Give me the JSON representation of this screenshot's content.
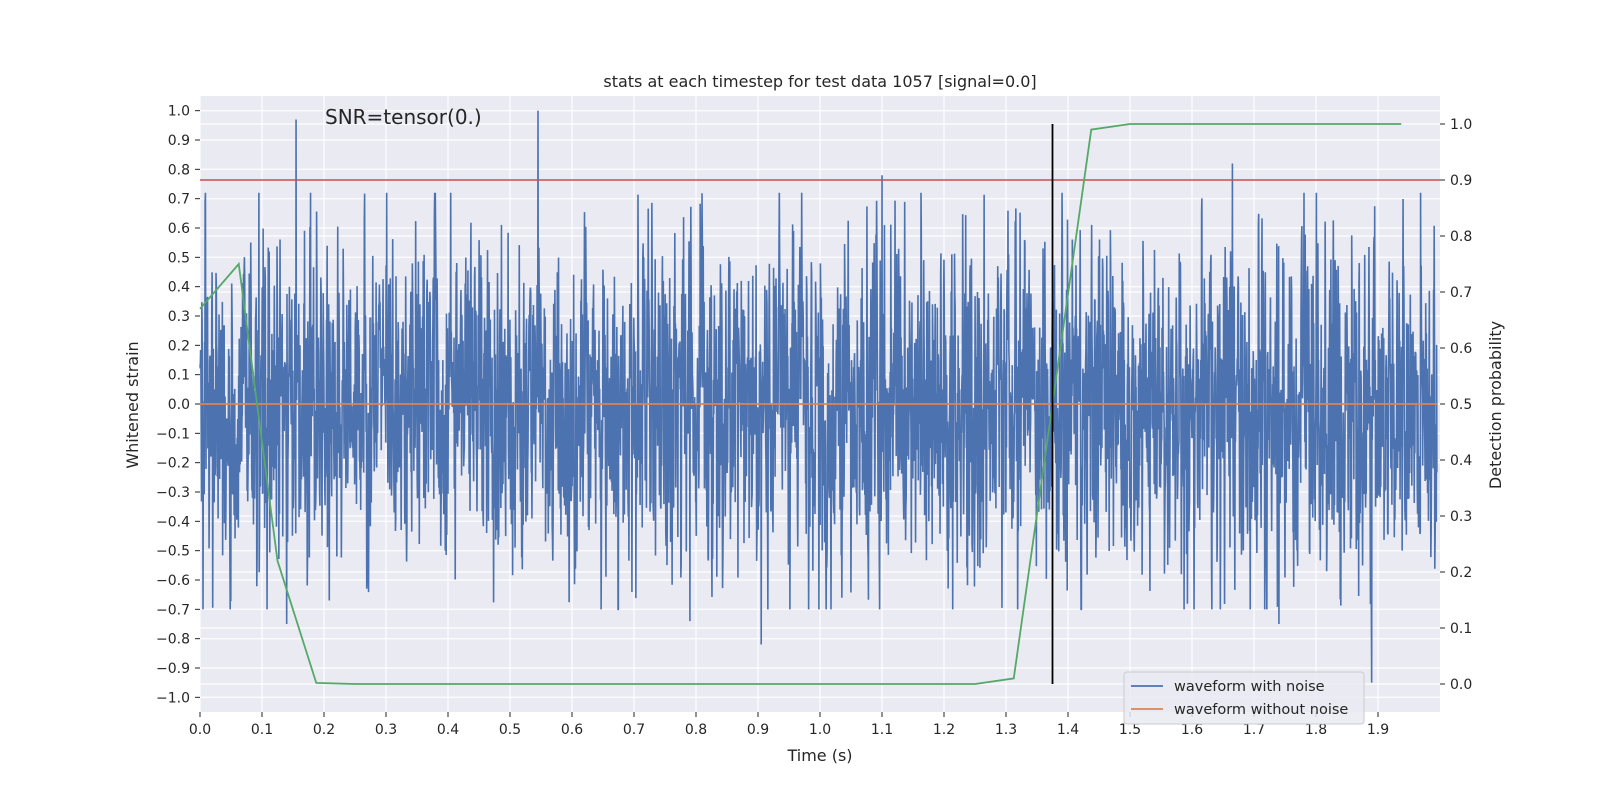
{
  "chart_data": {
    "type": "line",
    "title": "stats at each timestep for test data 1057 [signal=0.0]",
    "xlabel": "Time (s)",
    "ylabel_left": "Whitened strain",
    "ylabel_right": "Detection probability",
    "xlim": [
      0.0,
      2.0
    ],
    "ylim_left": [
      -1.05,
      1.05
    ],
    "ylim_right": [
      -0.05,
      1.05
    ],
    "x_ticks": [
      "0.0",
      "0.1",
      "0.2",
      "0.3",
      "0.4",
      "0.5",
      "0.6",
      "0.7",
      "0.8",
      "0.9",
      "1.0",
      "1.1",
      "1.2",
      "1.3",
      "1.4",
      "1.5",
      "1.6",
      "1.7",
      "1.8",
      "1.9"
    ],
    "y_ticks_left": [
      "1.0",
      "0.9",
      "0.8",
      "0.7",
      "0.6",
      "0.5",
      "0.4",
      "0.3",
      "0.2",
      "0.1",
      "0.0",
      "−0.1",
      "−0.2",
      "−0.3",
      "−0.4",
      "−0.5",
      "−0.6",
      "−0.7",
      "−0.8",
      "−0.9",
      "−1.0"
    ],
    "y_ticks_right": [
      "1.0",
      "0.9",
      "0.8",
      "0.7",
      "0.6",
      "0.5",
      "0.4",
      "0.3",
      "0.2",
      "0.1",
      "0.0"
    ],
    "grid": true,
    "legend_placement": "lower-right",
    "annotation": "SNR=tensor(0.)",
    "threshold_line": {
      "axis": "right",
      "y": 0.9,
      "color": "#c44e52"
    },
    "vertical_marker": {
      "x": 1.375,
      "y_range_right": [
        0.0,
        1.0
      ],
      "color": "#000000"
    },
    "series": [
      {
        "name": "waveform with noise",
        "axis": "left",
        "color": "#4c72b0",
        "kind": "noise",
        "x_range": [
          0.0,
          1.995
        ],
        "n_points": 4096,
        "approx_std": 0.25,
        "min": -0.95,
        "max": 1.0
      },
      {
        "name": "waveform without noise",
        "axis": "left",
        "color": "#dd8452",
        "x": [
          0.0,
          1.995
        ],
        "y": [
          0.0,
          0.0
        ]
      },
      {
        "name": "detection probability",
        "axis": "right",
        "color": "#55a868",
        "x": [
          0.0,
          0.0625,
          0.125,
          0.1875,
          0.25,
          0.3125,
          0.375,
          0.4375,
          0.5,
          0.5625,
          0.625,
          0.6875,
          0.75,
          0.8125,
          0.875,
          0.9375,
          1.0,
          1.0625,
          1.125,
          1.1875,
          1.25,
          1.3125,
          1.375,
          1.4375,
          1.5,
          1.5625,
          1.625,
          1.6875,
          1.75,
          1.8125,
          1.875,
          1.9375
        ],
        "y": [
          0.67,
          0.75,
          0.22,
          0.002,
          0.0,
          0.0,
          0.0,
          0.0,
          0.0,
          0.0,
          0.0,
          0.0,
          0.0,
          0.0,
          0.0,
          0.0,
          0.0,
          0.0,
          0.0,
          0.0,
          0.0,
          0.01,
          0.5,
          0.99,
          1.0,
          1.0,
          1.0,
          1.0,
          1.0,
          1.0,
          1.0,
          1.0
        ]
      }
    ],
    "noise_spikes": [
      {
        "x": 0.155,
        "y": 0.97
      },
      {
        "x": 0.545,
        "y": 1.0
      },
      {
        "x": 1.665,
        "y": 0.82
      },
      {
        "x": 0.905,
        "y": -0.82
      },
      {
        "x": 1.89,
        "y": -0.95
      },
      {
        "x": 0.14,
        "y": -0.75
      },
      {
        "x": 0.79,
        "y": -0.74
      },
      {
        "x": 1.74,
        "y": -0.75
      },
      {
        "x": 1.1,
        "y": 0.78
      },
      {
        "x": 0.095,
        "y": 0.72
      }
    ]
  }
}
